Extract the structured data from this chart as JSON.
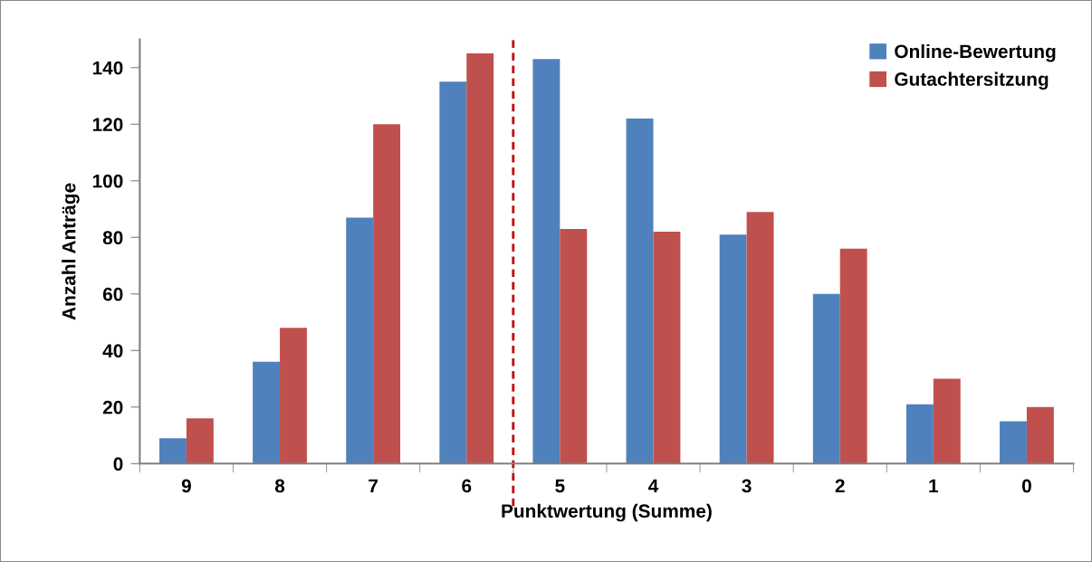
{
  "chart_data": {
    "type": "bar",
    "xlabel": "Punktwertung (Summe)",
    "ylabel": "Anzahl Anträge",
    "categories": [
      "9",
      "8",
      "7",
      "6",
      "5",
      "4",
      "3",
      "2",
      "1",
      "0"
    ],
    "series": [
      {
        "name": "Online-Bewertung",
        "color": "#4f81bd",
        "values": [
          9,
          36,
          87,
          135,
          143,
          122,
          81,
          60,
          21,
          15
        ]
      },
      {
        "name": "Gutachtersitzung",
        "color": "#c0504d",
        "values": [
          16,
          48,
          120,
          145,
          83,
          82,
          89,
          76,
          30,
          20
        ]
      }
    ],
    "ylim": [
      0,
      150
    ],
    "yticks": [
      0,
      20,
      40,
      60,
      80,
      100,
      120,
      140
    ],
    "grid": false,
    "legend": "top right"
  }
}
